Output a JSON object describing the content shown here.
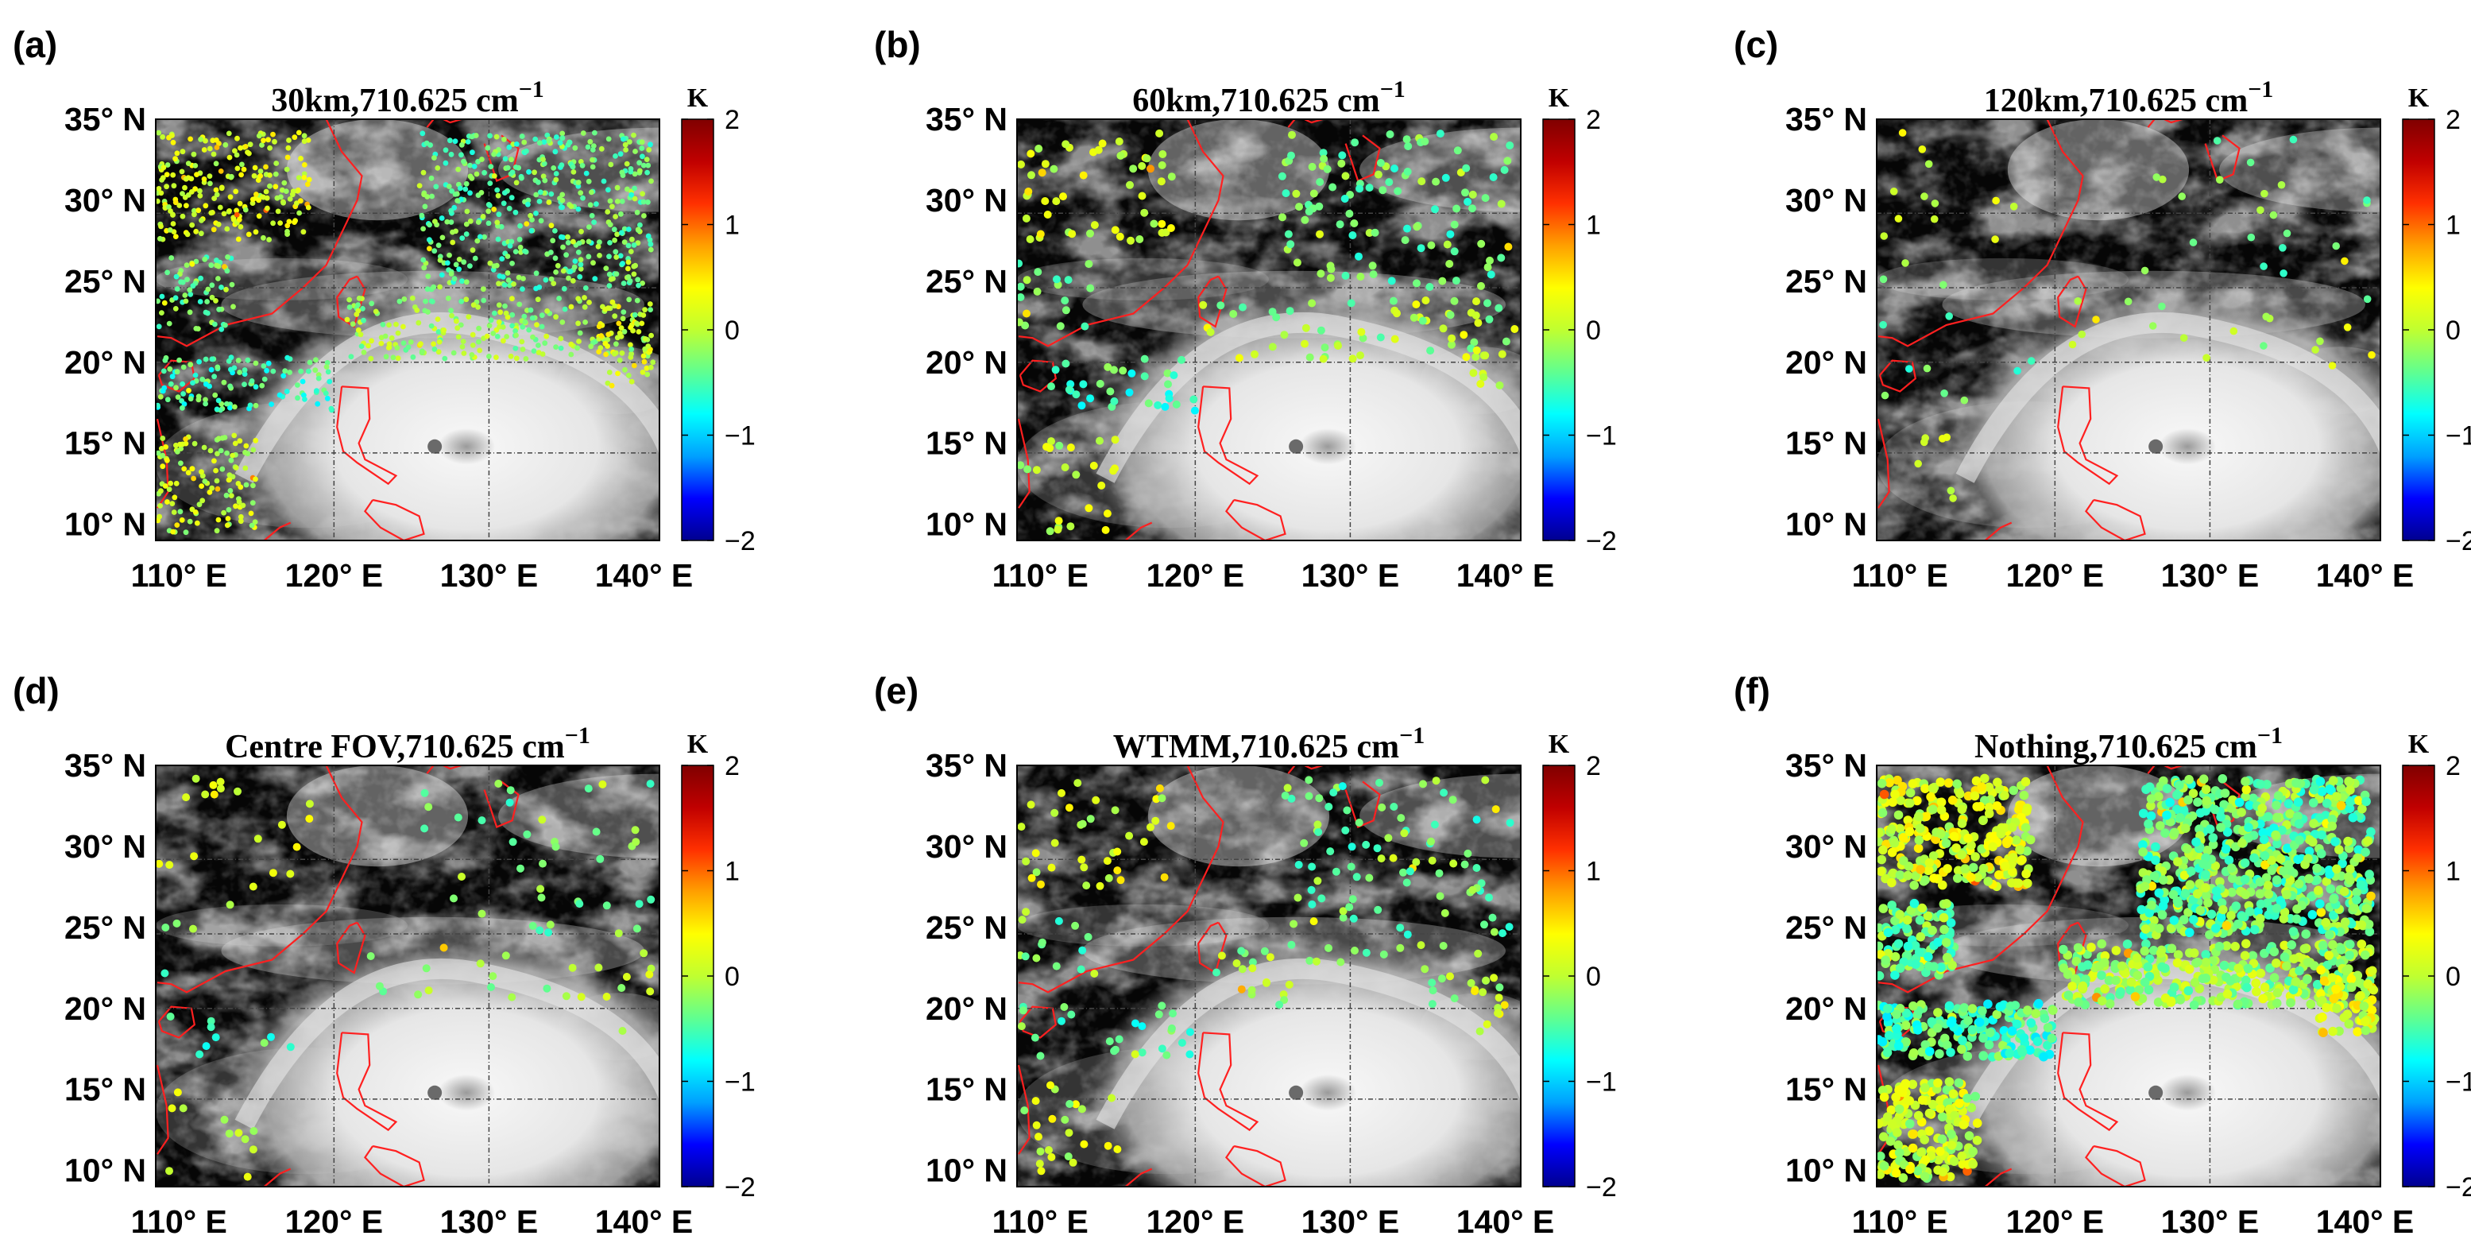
{
  "figure": {
    "colorscale": [
      "#00008f",
      "#0000ff",
      "#00a0ff",
      "#00ffff",
      "#60ff90",
      "#c0ff30",
      "#ffff00",
      "#ffa000",
      "#ff3000",
      "#c00000",
      "#800000"
    ],
    "coast_color": "#ff2020",
    "panels": [
      {
        "tag": "(a)",
        "title_main": "30km,710.625 cm",
        "title_sup": "−1",
        "scheme": "30km"
      },
      {
        "tag": "(b)",
        "title_main": "60km,710.625 cm",
        "title_sup": "−1",
        "scheme": "60km"
      },
      {
        "tag": "(c)",
        "title_main": "120km,710.625 cm",
        "title_sup": "−1",
        "scheme": "120km"
      },
      {
        "tag": "(d)",
        "title_main": "Centre FOV,710.625 cm",
        "title_sup": "−1",
        "scheme": "centre"
      },
      {
        "tag": "(e)",
        "title_main": "WTMM,710.625 cm",
        "title_sup": "−1",
        "scheme": "wtmm"
      },
      {
        "tag": "(f)",
        "title_main": "Nothing,710.625 cm",
        "title_sup": "−1",
        "scheme": "nothing"
      }
    ]
  },
  "chart_data": {
    "type": "scatter",
    "description_of_axes": "map longitude vs latitude with colored observation points over a satellite cloud image",
    "xlabel": "",
    "ylabel": "",
    "xlim": [
      108.5,
      141
    ],
    "ylim": [
      9,
      35
    ],
    "x_ticks": [
      110,
      120,
      130,
      140
    ],
    "x_tick_labels": [
      "110° E",
      "120° E",
      "130° E",
      "140° E"
    ],
    "y_ticks": [
      10,
      15,
      20,
      25,
      30,
      35
    ],
    "y_tick_labels": [
      "10° N",
      "15° N",
      "20° N",
      "25° N",
      "30° N",
      "35° N"
    ],
    "colorbar": {
      "unit": "K",
      "clim": [
        -2,
        2
      ],
      "ticks": [
        -2,
        -1,
        0,
        1,
        2
      ],
      "tick_labels": [
        "−2",
        "−1",
        "0",
        "1",
        "2"
      ]
    },
    "graticule_lon": [
      120,
      130
    ],
    "graticule_lat": [
      14.4,
      20,
      24.6,
      29.2
    ],
    "typhoon_center": {
      "lon": 126.5,
      "lat": 14.8
    },
    "panel_point_density_rank": {
      "30km": 5,
      "60km": 4,
      "120km": 1,
      "centre": 2,
      "wtmm": 3,
      "nothing": 6
    }
  }
}
